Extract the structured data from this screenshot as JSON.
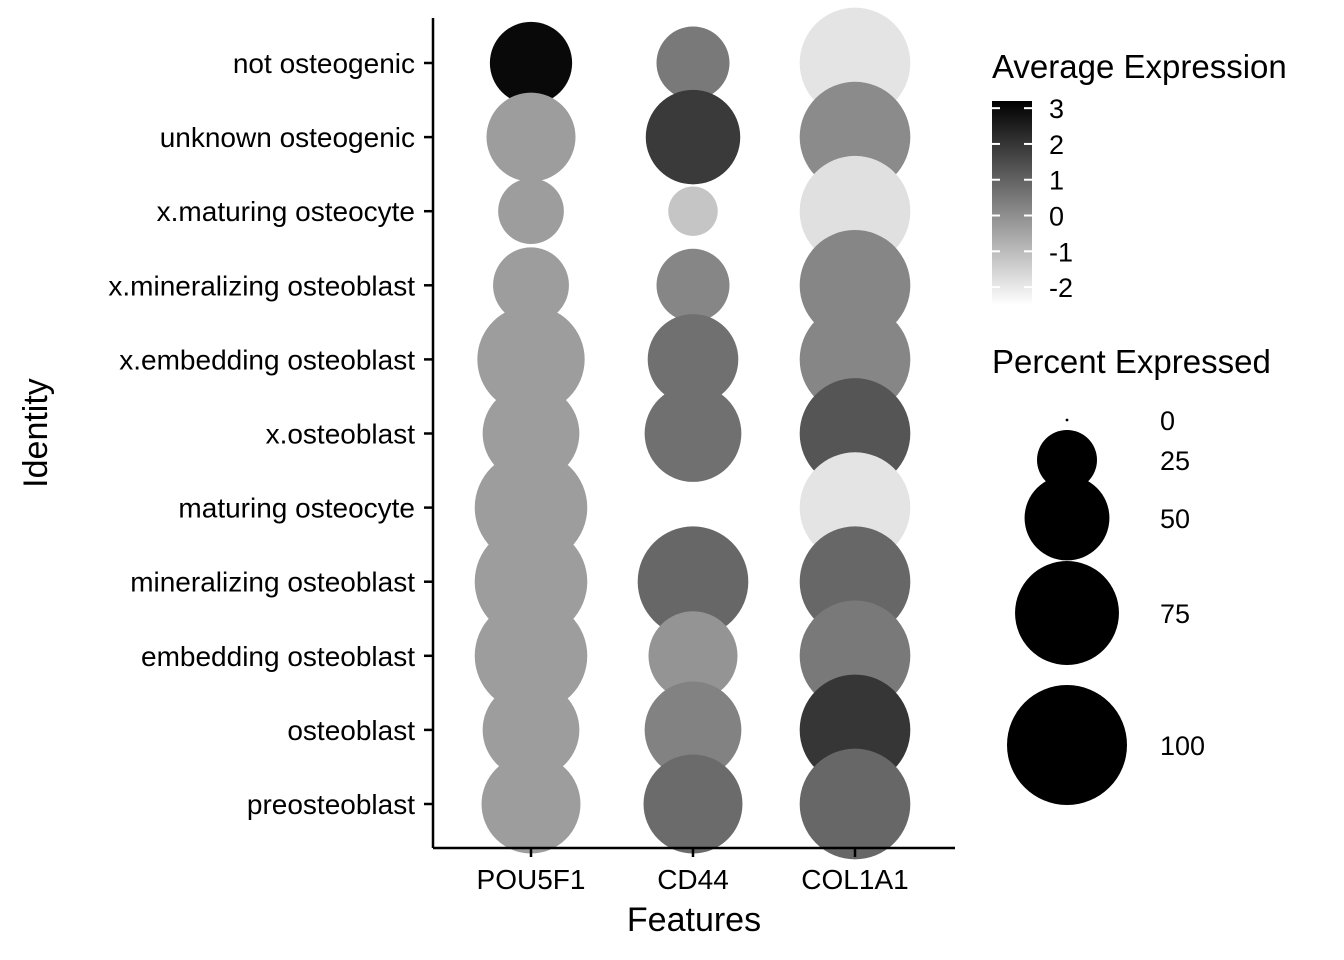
{
  "chart_data": {
    "type": "dot",
    "xlabel": "Features",
    "ylabel": "Identity",
    "features": [
      "POU5F1",
      "CD44",
      "COL1A1"
    ],
    "identities": [
      "not osteogenic",
      "unknown osteogenic",
      "x.maturing osteocyte",
      "x.mineralizing osteoblast",
      "x.embedding osteoblast",
      "x.osteoblast",
      "maturing osteocyte",
      "mineralizing osteoblast",
      "embedding osteoblast",
      "osteoblast",
      "preosteoblast"
    ],
    "points": [
      {
        "identity": "not osteogenic",
        "feature": "POU5F1",
        "avg_exp": 3.0,
        "pct_exp": 47
      },
      {
        "identity": "not osteogenic",
        "feature": "CD44",
        "avg_exp": 0.5,
        "pct_exp": 37
      },
      {
        "identity": "not osteogenic",
        "feature": "COL1A1",
        "avg_exp": -1.9,
        "pct_exp": 85
      },
      {
        "identity": "unknown osteogenic",
        "feature": "POU5F1",
        "avg_exp": -0.3,
        "pct_exp": 55
      },
      {
        "identity": "unknown osteogenic",
        "feature": "CD44",
        "avg_exp": 1.9,
        "pct_exp": 62
      },
      {
        "identity": "unknown osteogenic",
        "feature": "COL1A1",
        "avg_exp": 0.1,
        "pct_exp": 85
      },
      {
        "identity": "x.maturing osteocyte",
        "feature": "POU5F1",
        "avg_exp": -0.3,
        "pct_exp": 30
      },
      {
        "identity": "x.maturing osteocyte",
        "feature": "CD44",
        "avg_exp": -1.2,
        "pct_exp": 17
      },
      {
        "identity": "x.maturing osteocyte",
        "feature": "COL1A1",
        "avg_exp": -1.8,
        "pct_exp": 85
      },
      {
        "identity": "x.mineralizing osteoblast",
        "feature": "POU5F1",
        "avg_exp": -0.3,
        "pct_exp": 40
      },
      {
        "identity": "x.mineralizing osteoblast",
        "feature": "CD44",
        "avg_exp": 0.2,
        "pct_exp": 37
      },
      {
        "identity": "x.mineralizing osteoblast",
        "feature": "COL1A1",
        "avg_exp": 0.2,
        "pct_exp": 85
      },
      {
        "identity": "x.embedding osteoblast",
        "feature": "POU5F1",
        "avg_exp": -0.3,
        "pct_exp": 80
      },
      {
        "identity": "x.embedding osteoblast",
        "feature": "CD44",
        "avg_exp": 0.7,
        "pct_exp": 57
      },
      {
        "identity": "x.embedding osteoblast",
        "feature": "COL1A1",
        "avg_exp": 0.2,
        "pct_exp": 85
      },
      {
        "identity": "x.osteoblast",
        "feature": "POU5F1",
        "avg_exp": -0.3,
        "pct_exp": 65
      },
      {
        "identity": "x.osteoblast",
        "feature": "CD44",
        "avg_exp": 0.7,
        "pct_exp": 65
      },
      {
        "identity": "x.osteoblast",
        "feature": "COL1A1",
        "avg_exp": 1.3,
        "pct_exp": 85
      },
      {
        "identity": "maturing osteocyte",
        "feature": "POU5F1",
        "avg_exp": -0.3,
        "pct_exp": 88
      },
      {
        "identity": "maturing osteocyte",
        "feature": "CD44",
        "avg_exp": -2.0,
        "pct_exp": 0
      },
      {
        "identity": "maturing osteocyte",
        "feature": "COL1A1",
        "avg_exp": -1.9,
        "pct_exp": 85
      },
      {
        "identity": "mineralizing osteoblast",
        "feature": "POU5F1",
        "avg_exp": -0.3,
        "pct_exp": 88
      },
      {
        "identity": "mineralizing osteoblast",
        "feature": "CD44",
        "avg_exp": 0.9,
        "pct_exp": 85
      },
      {
        "identity": "mineralizing osteoblast",
        "feature": "COL1A1",
        "avg_exp": 0.9,
        "pct_exp": 85
      },
      {
        "identity": "embedding osteoblast",
        "feature": "POU5F1",
        "avg_exp": -0.3,
        "pct_exp": 88
      },
      {
        "identity": "embedding osteoblast",
        "feature": "CD44",
        "avg_exp": -0.1,
        "pct_exp": 55
      },
      {
        "identity": "embedding osteoblast",
        "feature": "COL1A1",
        "avg_exp": 0.5,
        "pct_exp": 85
      },
      {
        "identity": "osteoblast",
        "feature": "POU5F1",
        "avg_exp": -0.3,
        "pct_exp": 65
      },
      {
        "identity": "osteoblast",
        "feature": "CD44",
        "avg_exp": 0.3,
        "pct_exp": 65
      },
      {
        "identity": "osteoblast",
        "feature": "COL1A1",
        "avg_exp": 2.0,
        "pct_exp": 85
      },
      {
        "identity": "preosteoblast",
        "feature": "POU5F1",
        "avg_exp": -0.3,
        "pct_exp": 68
      },
      {
        "identity": "preosteoblast",
        "feature": "CD44",
        "avg_exp": 0.8,
        "pct_exp": 68
      },
      {
        "identity": "preosteoblast",
        "feature": "COL1A1",
        "avg_exp": 0.9,
        "pct_exp": 85
      }
    ],
    "color_legend": {
      "title": "Average Expression",
      "range": [
        -2.5,
        3.2
      ],
      "ticks": [
        3,
        2,
        1,
        0,
        -1,
        -2
      ],
      "tick_labels": [
        "3",
        "2",
        "1",
        "0",
        "-1",
        "-2"
      ],
      "low_color": "#ffffff",
      "high_color": "#000000"
    },
    "size_legend": {
      "title": "Percent Expressed",
      "values": [
        0,
        25,
        50,
        75,
        100
      ],
      "labels": [
        "0",
        "25",
        "50",
        "75",
        "100"
      ]
    },
    "grid": false,
    "legend_position": "right"
  }
}
